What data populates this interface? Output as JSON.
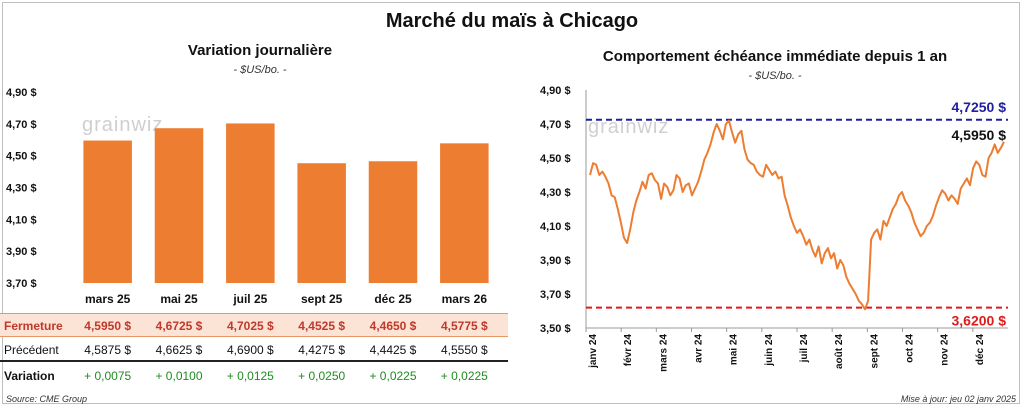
{
  "title": "Marché du maïs à Chicago",
  "left_chart": {
    "title": "Variation journalière",
    "unit": "- $US/bo. -",
    "watermark": "grainwiz",
    "chart_data": {
      "type": "bar",
      "categories": [
        "mars 25",
        "mai 25",
        "juil 25",
        "sept 25",
        "déc 25",
        "mars 26"
      ],
      "values": [
        4.595,
        4.6725,
        4.7025,
        4.4525,
        4.465,
        4.5775
      ],
      "ylim": [
        3.7,
        4.9
      ],
      "yticks": [
        "3,70 $",
        "3,90 $",
        "4,10 $",
        "4,30 $",
        "4,50 $",
        "4,70 $",
        "4,90 $"
      ],
      "ytick_values": [
        3.7,
        3.9,
        4.1,
        4.3,
        4.5,
        4.7,
        4.9
      ],
      "color": "#ed7d31"
    }
  },
  "table": {
    "rows": [
      {
        "label": "Fermeture",
        "values": [
          "4,5950  $",
          "4,6725  $",
          "4,7025  $",
          "4,4525  $",
          "4,4650  $",
          "4,5775  $"
        ]
      },
      {
        "label": "Précédent",
        "values": [
          "4,5875  $",
          "4,6625  $",
          "4,6900  $",
          "4,4275  $",
          "4,4425  $",
          "4,5550  $"
        ]
      },
      {
        "label": "Variation",
        "values": [
          "+ 0,0075",
          "+ 0,0100",
          "+ 0,0125",
          "+ 0,0250",
          "+ 0,0225",
          "+ 0,0225"
        ]
      }
    ]
  },
  "right_chart": {
    "title": "Comportement  échéance immédiate depuis 1 an",
    "unit": "- $US/bo. -",
    "watermark": "grainwiz",
    "chart_data": {
      "type": "line",
      "xlabels": [
        "janv 24",
        "févr 24",
        "mars 24",
        "avr 24",
        "mai 24",
        "juin 24",
        "juil 24",
        "août 24",
        "sept 24",
        "oct 24",
        "nov 24",
        "déc 24"
      ],
      "ylim": [
        3.5,
        4.9
      ],
      "yticks": [
        "3,50 $",
        "3,70 $",
        "3,90 $",
        "4,10 $",
        "4,30 $",
        "4,50 $",
        "4,70 $",
        "4,90 $"
      ],
      "ytick_values": [
        3.5,
        3.7,
        3.9,
        4.1,
        4.3,
        4.5,
        4.7,
        4.9
      ],
      "values": [
        4.4,
        4.47,
        4.46,
        4.4,
        4.42,
        4.39,
        4.35,
        4.28,
        4.27,
        4.2,
        4.12,
        4.03,
        4.0,
        4.08,
        4.18,
        4.25,
        4.3,
        4.36,
        4.32,
        4.4,
        4.41,
        4.37,
        4.35,
        4.26,
        4.35,
        4.33,
        4.28,
        4.31,
        4.4,
        4.38,
        4.3,
        4.34,
        4.35,
        4.28,
        4.32,
        4.36,
        4.42,
        4.49,
        4.53,
        4.58,
        4.65,
        4.7,
        4.66,
        4.61,
        4.7,
        4.72,
        4.65,
        4.59,
        4.64,
        4.66,
        4.55,
        4.49,
        4.47,
        4.46,
        4.42,
        4.4,
        4.39,
        4.46,
        4.43,
        4.4,
        4.42,
        4.38,
        4.39,
        4.28,
        4.22,
        4.15,
        4.1,
        4.06,
        4.08,
        4.04,
        3.99,
        4.02,
        3.96,
        3.92,
        3.98,
        3.88,
        3.94,
        3.97,
        3.91,
        3.94,
        3.85,
        3.9,
        3.87,
        3.8,
        3.76,
        3.73,
        3.7,
        3.66,
        3.64,
        3.61,
        3.66,
        4.02,
        4.06,
        4.08,
        4.02,
        4.13,
        4.1,
        4.15,
        4.2,
        4.23,
        4.28,
        4.3,
        4.25,
        4.22,
        4.18,
        4.12,
        4.08,
        4.04,
        4.06,
        4.1,
        4.12,
        4.16,
        4.22,
        4.27,
        4.31,
        4.29,
        4.25,
        4.28,
        4.26,
        4.23,
        4.32,
        4.35,
        4.38,
        4.34,
        4.44,
        4.48,
        4.46,
        4.4,
        4.39,
        4.5,
        4.53,
        4.58,
        4.53,
        4.56,
        4.595
      ],
      "max_line": {
        "value": 4.725,
        "label": "4,7250 $",
        "color": "#1f1fa0"
      },
      "min_line": {
        "value": 3.62,
        "label": "3,6200 $",
        "color": "#e01b1b"
      },
      "last": {
        "value": 4.595,
        "label": "4,5950 $"
      },
      "line_color": "#ed7d31"
    }
  },
  "footer": {
    "source": "Source: CME Group",
    "updated": "Mise à jour: jeu 02 janv 2025"
  }
}
